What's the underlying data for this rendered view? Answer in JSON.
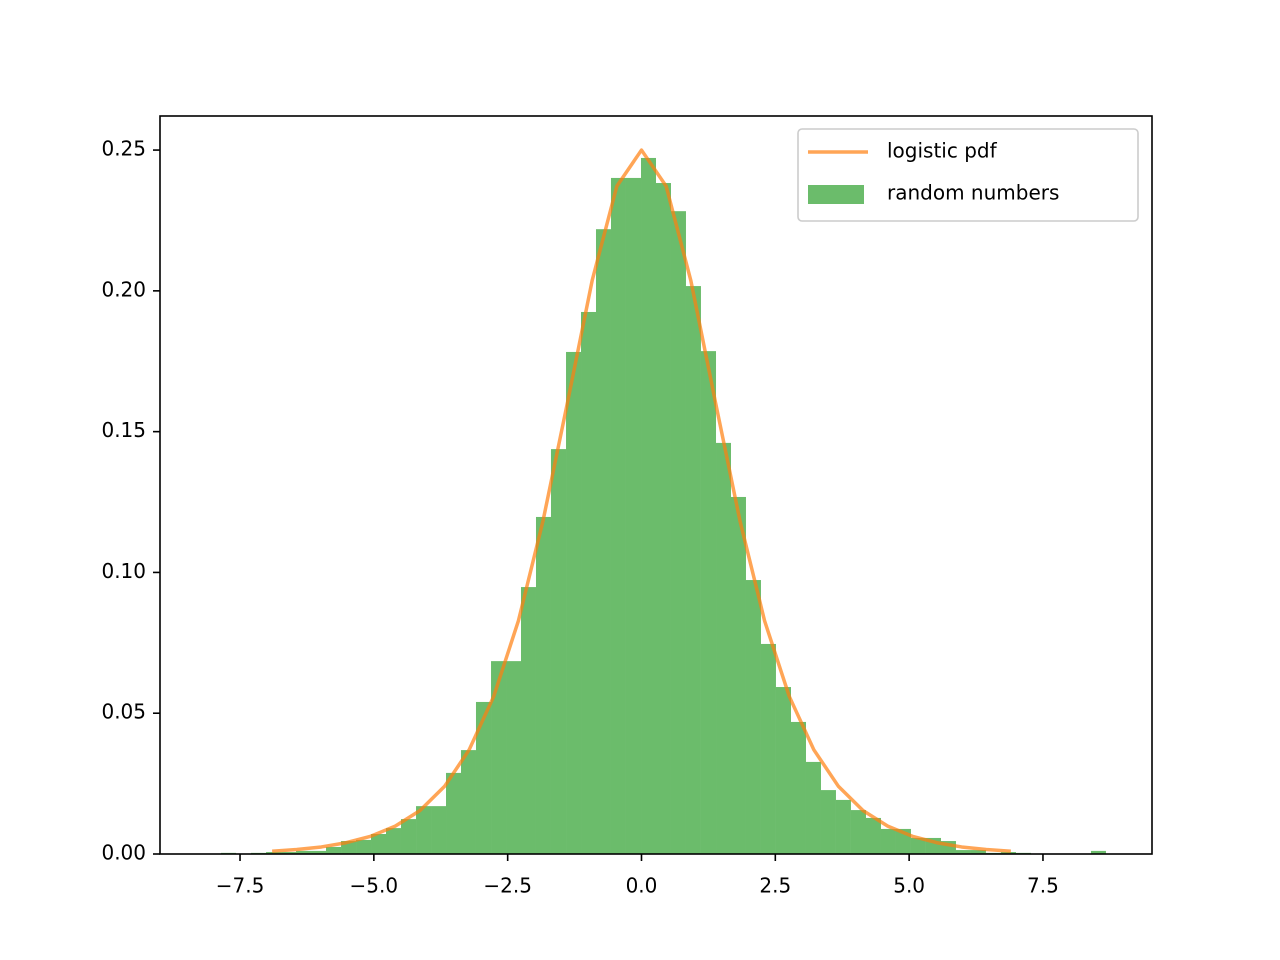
{
  "chart_data": {
    "type": "histogram",
    "name": "random numbers",
    "color": "#2ca02c",
    "opacity": 0.7,
    "bins": [
      -7.855,
      -7.575,
      -7.295,
      -7.014,
      -6.734,
      -6.454,
      -6.174,
      -5.894,
      -5.613,
      -5.333,
      -5.053,
      -4.773,
      -4.493,
      -4.212,
      -3.932,
      -3.652,
      -3.372,
      -3.092,
      -2.811,
      -2.531,
      -2.251,
      -1.971,
      -1.691,
      -1.41,
      -1.13,
      -0.85,
      -0.57,
      -0.29,
      -0.009,
      0.271,
      0.551,
      0.831,
      1.111,
      1.392,
      1.672,
      1.952,
      2.232,
      2.512,
      2.793,
      3.073,
      3.353,
      3.633,
      3.913,
      4.194,
      4.474,
      4.754,
      5.034,
      5.314,
      5.595,
      5.875,
      6.155,
      6.435,
      6.715,
      6.996,
      7.276,
      7.556,
      7.836,
      8.117,
      8.397,
      8.677
    ],
    "counts": [
      0.0004,
      0,
      0.0004,
      0.0007,
      0.0007,
      0.0011,
      0.0011,
      0.0025,
      0.0046,
      0.005,
      0.0071,
      0.0092,
      0.0124,
      0.017,
      0.017,
      0.0288,
      0.0369,
      0.054,
      0.0685,
      0.0685,
      0.0948,
      0.1197,
      0.1438,
      0.1783,
      0.1925,
      0.2219,
      0.2401,
      0.2401,
      0.2472,
      0.2383,
      0.2283,
      0.2017,
      0.1786,
      0.146,
      0.1268,
      0.0973,
      0.0746,
      0.0593,
      0.0469,
      0.0327,
      0.0227,
      0.0192,
      0.0156,
      0.0128,
      0.0089,
      0.0089,
      0.0057,
      0.0057,
      0.0046,
      0.0014,
      0.0014,
      0.0004,
      0.0007,
      0.0004,
      0,
      0,
      0,
      0,
      0.0011
    ],
    "overlay": {
      "type": "line",
      "name": "logistic pdf",
      "color": "#ff7f0e",
      "opacity": 0.7,
      "x": [
        -6.9,
        -6.44,
        -5.98,
        -5.52,
        -5.06,
        -4.6,
        -4.14,
        -3.68,
        -3.22,
        -2.76,
        -2.3,
        -1.84,
        -1.38,
        -0.92,
        -0.46,
        0,
        0.46,
        0.92,
        1.38,
        1.84,
        2.3,
        2.76,
        3.22,
        3.68,
        4.14,
        4.6,
        5.06,
        5.52,
        5.98,
        6.44,
        6.9
      ],
      "values": [
        0.001,
        0.0016,
        0.0025,
        0.004,
        0.0063,
        0.0099,
        0.0154,
        0.024,
        0.037,
        0.056,
        0.0828,
        0.1183,
        0.1606,
        0.2038,
        0.2372,
        0.25,
        0.2372,
        0.2038,
        0.1606,
        0.1183,
        0.0828,
        0.056,
        0.037,
        0.024,
        0.0154,
        0.0099,
        0.0063,
        0.004,
        0.0025,
        0.0016,
        0.001
      ]
    },
    "xlim": [
      -8.995,
      9.537
    ],
    "ylim": [
      0,
      0.2621
    ],
    "xticks": [
      {
        "value": -7.5,
        "label": "−7.5"
      },
      {
        "value": -5,
        "label": "−5.0"
      },
      {
        "value": -2.5,
        "label": "−2.5"
      },
      {
        "value": 0,
        "label": "0.0"
      },
      2.5,
      {
        "value": 5,
        "label": "5.0"
      },
      7.5
    ],
    "yticks": [
      {
        "value": 0,
        "label": "0.00"
      },
      0.05,
      {
        "value": 0.1,
        "label": "0.10"
      },
      0.15,
      {
        "value": 0.2,
        "label": "0.20"
      },
      0.25
    ],
    "legend": "upper right",
    "grid": false
  }
}
